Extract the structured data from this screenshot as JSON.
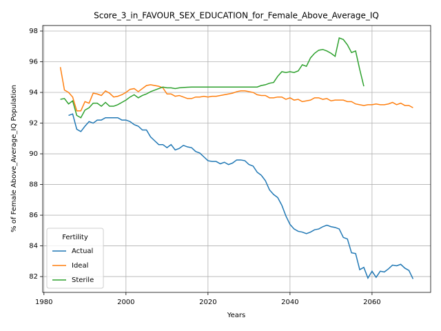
{
  "chart_data": {
    "type": "line",
    "title": "Score_3_in_FAVOUR_SEX_EDUCATION_for_Female_Above_Average_IQ",
    "x_label": "Years",
    "y_label": "% of Female Above_Average_IQ Population",
    "legend_title": "Fertility",
    "legend_position": "lower left",
    "grid": true,
    "xlim": [
      1979.7,
      2074.3
    ],
    "xticks": [
      1980,
      2000,
      2020,
      2040,
      2060
    ],
    "ylim": [
      80.97,
      98.36
    ],
    "yticks": [
      82,
      84,
      86,
      88,
      90,
      92,
      94,
      96,
      98
    ],
    "x": [
      1984,
      1985,
      1986,
      1987,
      1988,
      1989,
      1990,
      1991,
      1992,
      1993,
      1994,
      1995,
      1996,
      1997,
      1998,
      1999,
      2000,
      2001,
      2002,
      2003,
      2004,
      2005,
      2006,
      2007,
      2008,
      2009,
      2010,
      2011,
      2012,
      2013,
      2014,
      2015,
      2016,
      2017,
      2018,
      2019,
      2020,
      2021,
      2022,
      2023,
      2024,
      2025,
      2026,
      2027,
      2028,
      2029,
      2030,
      2031,
      2032,
      2033,
      2034,
      2035,
      2036,
      2037,
      2038,
      2039,
      2040,
      2041,
      2042,
      2043,
      2044,
      2045,
      2046,
      2047,
      2048,
      2049,
      2050,
      2051,
      2052,
      2053,
      2054,
      2055,
      2056,
      2057,
      2058,
      2059,
      2060,
      2061,
      2062,
      2063,
      2064,
      2065,
      2066,
      2067,
      2068,
      2069,
      2070
    ],
    "series": [
      {
        "name": "Actual",
        "color": "#1f77b4",
        "values": [
          null,
          null,
          92.5,
          92.6,
          91.6,
          91.45,
          91.8,
          92.1,
          92.0,
          92.2,
          92.2,
          92.35,
          92.35,
          92.35,
          92.35,
          92.2,
          92.2,
          92.1,
          91.9,
          91.8,
          91.55,
          91.55,
          91.1,
          90.85,
          90.6,
          90.6,
          90.4,
          90.6,
          90.25,
          90.35,
          90.55,
          90.45,
          90.4,
          90.15,
          90.05,
          89.8,
          89.55,
          89.5,
          89.5,
          89.35,
          89.45,
          89.3,
          89.4,
          89.6,
          89.6,
          89.55,
          89.3,
          89.2,
          88.8,
          88.6,
          88.25,
          87.65,
          87.35,
          87.15,
          86.65,
          85.95,
          85.4,
          85.1,
          84.95,
          84.9,
          84.8,
          84.9,
          85.05,
          85.1,
          85.25,
          85.35,
          85.25,
          85.2,
          85.1,
          84.55,
          84.45,
          83.55,
          83.5,
          82.45,
          82.6,
          81.9,
          82.35,
          81.95,
          82.35,
          82.3,
          82.5,
          82.75,
          82.7,
          82.8,
          82.55,
          82.4,
          81.85
        ]
      },
      {
        "name": "Ideal",
        "color": "#ff7f0e",
        "values": [
          95.65,
          94.15,
          94.0,
          93.7,
          92.8,
          92.8,
          93.4,
          93.3,
          93.95,
          93.9,
          93.8,
          94.1,
          93.95,
          93.7,
          93.75,
          93.85,
          94.0,
          94.2,
          94.25,
          94.05,
          94.25,
          94.45,
          94.5,
          94.45,
          94.4,
          94.3,
          93.9,
          93.9,
          93.75,
          93.8,
          93.7,
          93.6,
          93.6,
          93.7,
          93.7,
          93.75,
          93.7,
          93.75,
          93.75,
          93.8,
          93.85,
          93.9,
          93.95,
          94.05,
          94.1,
          94.1,
          94.05,
          94.0,
          93.85,
          93.8,
          93.8,
          93.65,
          93.65,
          93.7,
          93.7,
          93.55,
          93.65,
          93.5,
          93.55,
          93.4,
          93.45,
          93.5,
          93.65,
          93.65,
          93.55,
          93.6,
          93.45,
          93.5,
          93.5,
          93.5,
          93.4,
          93.4,
          93.25,
          93.2,
          93.15,
          93.2,
          93.2,
          93.25,
          93.2,
          93.2,
          93.25,
          93.35,
          93.2,
          93.3,
          93.15,
          93.15,
          93.0
        ]
      },
      {
        "name": "Sterile",
        "color": "#2ca02c",
        "values": [
          93.55,
          93.6,
          93.25,
          93.45,
          92.5,
          92.35,
          92.85,
          93.0,
          93.3,
          93.3,
          93.1,
          93.35,
          93.1,
          93.1,
          93.2,
          93.35,
          93.5,
          93.7,
          93.85,
          93.65,
          93.8,
          93.9,
          94.05,
          94.15,
          94.25,
          94.35,
          94.3,
          94.3,
          94.25,
          94.3,
          94.32,
          94.34,
          94.35,
          94.35,
          94.35,
          94.35,
          94.35,
          94.35,
          94.35,
          94.35,
          94.35,
          94.35,
          94.35,
          94.35,
          94.35,
          94.35,
          94.35,
          94.35,
          94.35,
          94.45,
          94.5,
          94.6,
          94.65,
          95.05,
          95.35,
          95.3,
          95.35,
          95.3,
          95.4,
          95.8,
          95.7,
          96.25,
          96.55,
          96.75,
          96.8,
          96.7,
          96.55,
          96.35,
          97.55,
          97.45,
          97.1,
          96.6,
          96.7,
          95.5,
          94.4,
          null,
          null,
          null,
          null,
          null,
          null,
          null,
          null,
          null,
          null,
          null,
          null
        ]
      }
    ]
  }
}
